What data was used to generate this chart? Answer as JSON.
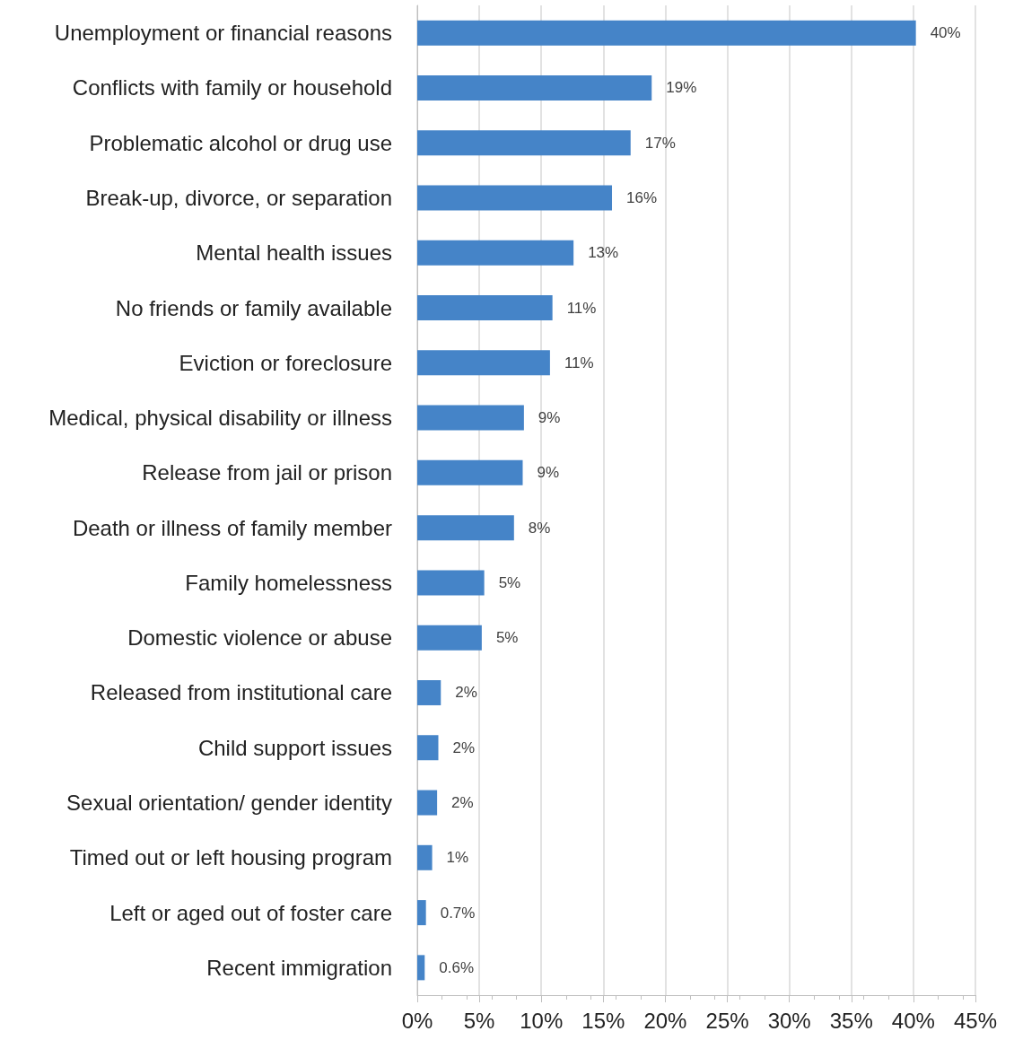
{
  "chart_data": {
    "type": "bar",
    "orientation": "horizontal",
    "categories": [
      "Unemployment or financial reasons",
      "Conflicts with family or household",
      "Problematic alcohol or drug use",
      "Break-up, divorce, or separation",
      "Mental health issues",
      "No friends or family available",
      "Eviction or foreclosure",
      "Medical, physical disability or illness",
      "Release from jail or prison",
      "Death or illness of family member",
      "Family homelessness",
      "Domestic violence or abuse",
      "Released from institutional care",
      "Child support issues",
      "Sexual orientation/ gender identity",
      "Timed out or left housing program",
      "Left or aged out of foster care",
      "Recent immigration"
    ],
    "values": [
      40.2,
      18.9,
      17.2,
      15.7,
      12.6,
      10.9,
      10.7,
      8.6,
      8.5,
      7.8,
      5.4,
      5.2,
      1.9,
      1.7,
      1.6,
      1.2,
      0.7,
      0.6
    ],
    "value_labels": [
      "40%",
      "19%",
      "17%",
      "16%",
      "13%",
      "11%",
      "11%",
      "9%",
      "9%",
      "8%",
      "5%",
      "5%",
      "2%",
      "2%",
      "2%",
      "1%",
      "0.7%",
      "0.6%"
    ],
    "color": "#4584c8",
    "xlim": [
      0,
      45
    ],
    "xticks": [
      {
        "value": 0,
        "label": "0%"
      },
      {
        "value": 5,
        "label": "5%"
      },
      {
        "value": 10,
        "label": "10%"
      },
      {
        "value": 15,
        "label": "15%"
      },
      {
        "value": 20,
        "label": "20%"
      },
      {
        "value": 25,
        "label": "25%"
      },
      {
        "value": 30,
        "label": "30%"
      },
      {
        "value": 35,
        "label": "35%"
      },
      {
        "value": 40,
        "label": "40%"
      },
      {
        "value": 45,
        "label": "45%"
      }
    ],
    "grid": "x"
  }
}
